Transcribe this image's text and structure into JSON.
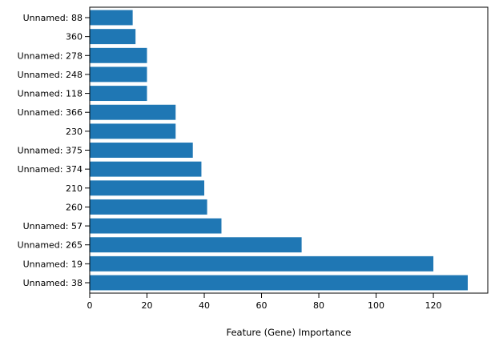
{
  "chart_data": {
    "type": "bar",
    "orientation": "horizontal",
    "categories": [
      "Unnamed: 38",
      "Unnamed: 19",
      "Unnamed: 265",
      "Unnamed: 57",
      "260",
      "210",
      "Unnamed: 374",
      "Unnamed: 375",
      "230",
      "Unnamed: 366",
      "Unnamed: 118",
      "Unnamed: 248",
      "Unnamed: 278",
      "360",
      "Unnamed: 88"
    ],
    "values": [
      132,
      120,
      74,
      46,
      41,
      40,
      39,
      36,
      30,
      30,
      20,
      20,
      20,
      16,
      15
    ],
    "title": "",
    "xlabel": "Feature (Gene) Importance",
    "ylabel": "",
    "xlim": [
      0,
      139
    ],
    "xticks": [
      0,
      20,
      40,
      60,
      80,
      100,
      120
    ],
    "grid": false,
    "bar_color": "#1f77b4"
  }
}
